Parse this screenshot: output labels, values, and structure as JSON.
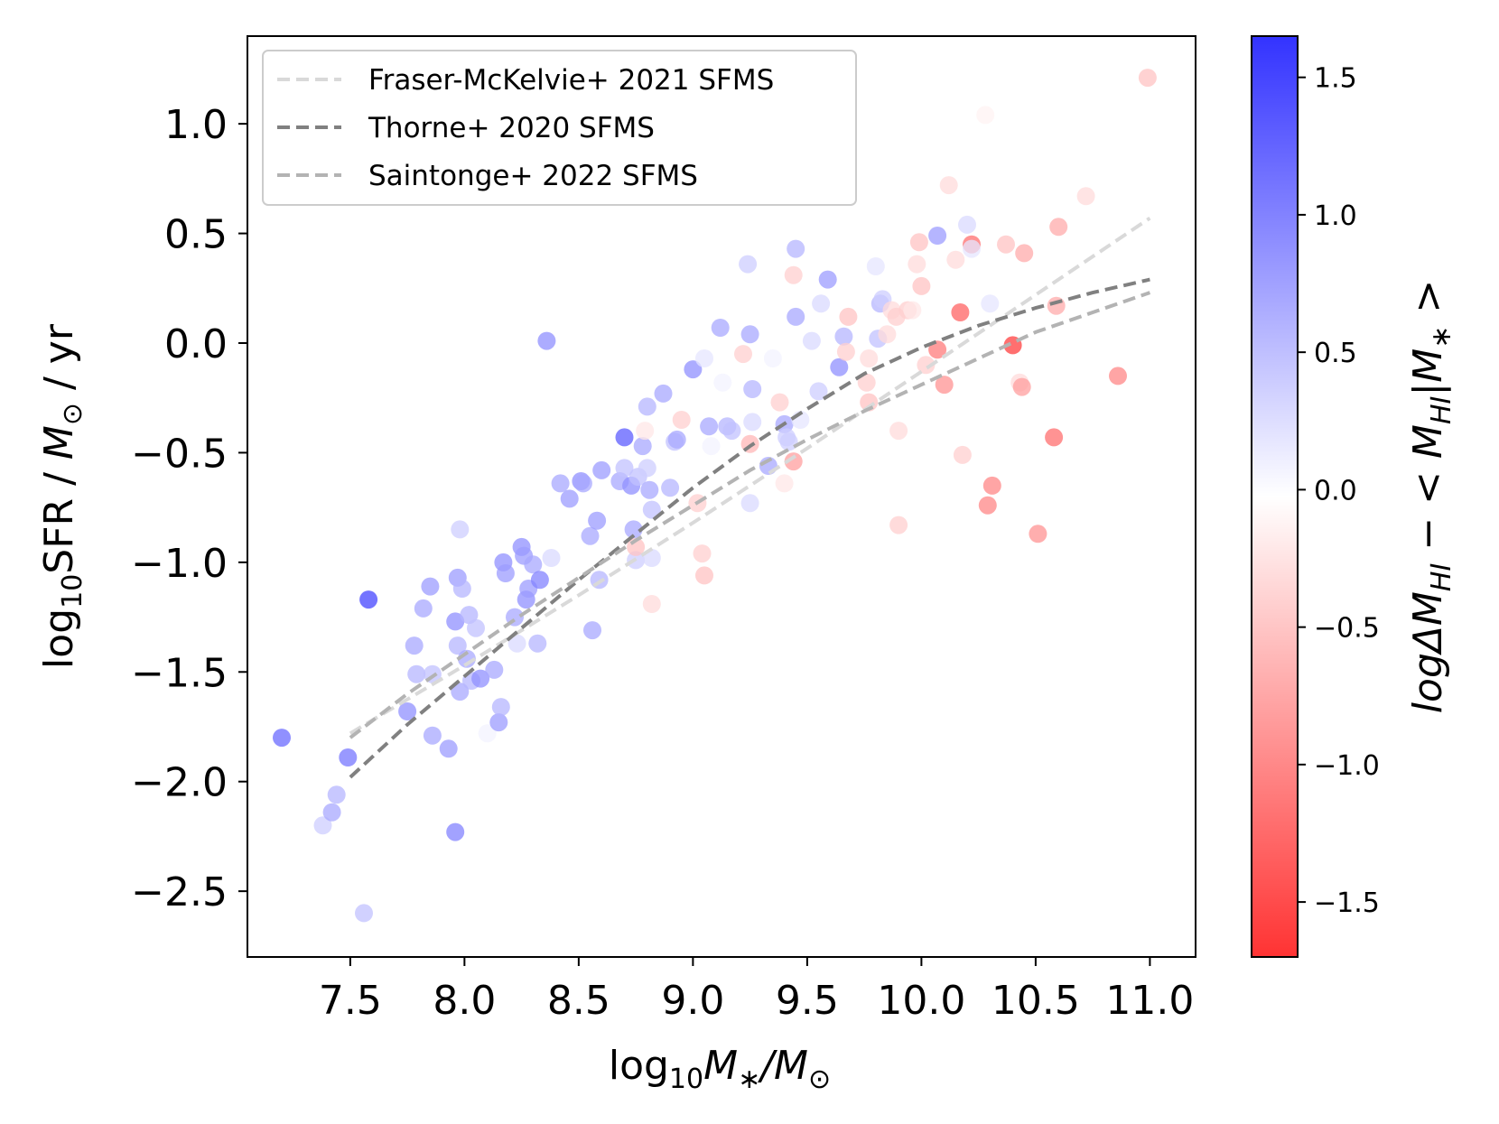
{
  "chart_data": {
    "type": "scatter",
    "xlabel": "log10M*/M⊙",
    "ylabel": "log10SFR /  M⊙ / yr",
    "colorbar_label": "logΔMHI − <MHI|M*>",
    "xlim": [
      7.05,
      11.2
    ],
    "ylim": [
      -2.8,
      1.4
    ],
    "clim": [
      -1.7,
      1.65
    ],
    "xticks": [
      7.5,
      8.0,
      8.5,
      9.0,
      9.5,
      10.0,
      10.5,
      11.0
    ],
    "xtick_labels": [
      "7.5",
      "8.0",
      "8.5",
      "9.0",
      "9.5",
      "10.0",
      "10.5",
      "11.0"
    ],
    "yticks": [
      1.0,
      0.5,
      0.0,
      -0.5,
      -1.0,
      -1.5,
      -2.0,
      -2.5
    ],
    "ytick_labels": [
      "1.0",
      "0.5",
      "0.0",
      "−0.5",
      "−1.0",
      "−1.5",
      "−2.0",
      "−2.5"
    ],
    "cticks": [
      1.5,
      1.0,
      0.5,
      0.0,
      -0.5,
      -1.0,
      -1.5
    ],
    "ctick_labels": [
      "1.5",
      "1.0",
      "0.5",
      "0.0",
      "−0.5",
      "−1.0",
      "−1.5"
    ],
    "legend": {
      "position": "upper-left",
      "entries": [
        {
          "label": "Fraser-McKelvie+ 2021 SFMS",
          "color": "#d9d9d9"
        },
        {
          "label": "Thorne+ 2020 SFMS",
          "color": "#808080"
        },
        {
          "label": "Saintonge+ 2022 SFMS",
          "color": "#b3b3b3"
        }
      ]
    },
    "lines": [
      {
        "name": "Fraser-McKelvie+ 2021 SFMS",
        "color": "#d9d9d9",
        "x": [
          7.5,
          8.0,
          8.5,
          9.0,
          9.5,
          10.0,
          10.5,
          11.0
        ],
        "y": [
          -1.78,
          -1.47,
          -1.15,
          -0.82,
          -0.48,
          -0.13,
          0.22,
          0.57
        ]
      },
      {
        "name": "Thorne+ 2020 SFMS",
        "color": "#808080",
        "x": [
          7.5,
          7.75,
          8.0,
          8.25,
          8.5,
          8.75,
          9.0,
          9.25,
          9.5,
          9.75,
          10.0,
          10.25,
          10.5,
          10.75,
          11.0
        ],
        "y": [
          -1.98,
          -1.74,
          -1.52,
          -1.3,
          -1.08,
          -0.87,
          -0.66,
          -0.47,
          -0.3,
          -0.14,
          -0.02,
          0.08,
          0.16,
          0.23,
          0.29
        ]
      },
      {
        "name": "Saintonge+ 2022 SFMS",
        "color": "#b3b3b3",
        "x": [
          7.5,
          7.75,
          8.0,
          8.25,
          8.5,
          8.75,
          9.0,
          9.25,
          9.5,
          9.75,
          10.0,
          10.25,
          10.5,
          10.75,
          11.0
        ],
        "y": [
          -1.8,
          -1.6,
          -1.42,
          -1.24,
          -1.07,
          -0.9,
          -0.74,
          -0.58,
          -0.44,
          -0.31,
          -0.19,
          -0.07,
          0.05,
          0.14,
          0.23
        ]
      }
    ],
    "points": [
      {
        "x": 7.2,
        "y": -1.8,
        "c": 1.2
      },
      {
        "x": 7.38,
        "y": -2.2,
        "c": 0.4
      },
      {
        "x": 7.42,
        "y": -2.14,
        "c": 0.7
      },
      {
        "x": 7.44,
        "y": -2.06,
        "c": 0.6
      },
      {
        "x": 7.49,
        "y": -1.89,
        "c": 1.1
      },
      {
        "x": 7.58,
        "y": -1.17,
        "c": 1.5
      },
      {
        "x": 7.56,
        "y": -2.6,
        "c": 0.5
      },
      {
        "x": 7.75,
        "y": -1.68,
        "c": 0.9
      },
      {
        "x": 7.78,
        "y": -1.38,
        "c": 0.7
      },
      {
        "x": 7.79,
        "y": -1.51,
        "c": 0.6
      },
      {
        "x": 7.82,
        "y": -1.21,
        "c": 0.7
      },
      {
        "x": 7.85,
        "y": -1.11,
        "c": 0.8
      },
      {
        "x": 7.86,
        "y": -1.51,
        "c": 0.5
      },
      {
        "x": 7.86,
        "y": -1.79,
        "c": 0.7
      },
      {
        "x": 7.93,
        "y": -1.85,
        "c": 0.8
      },
      {
        "x": 7.96,
        "y": -2.23,
        "c": 1.0
      },
      {
        "x": 7.96,
        "y": -1.27,
        "c": 0.9
      },
      {
        "x": 7.97,
        "y": -1.07,
        "c": 0.8
      },
      {
        "x": 7.97,
        "y": -1.38,
        "c": 0.6
      },
      {
        "x": 7.98,
        "y": -0.85,
        "c": 0.4
      },
      {
        "x": 7.99,
        "y": -1.12,
        "c": 0.6
      },
      {
        "x": 7.98,
        "y": -1.59,
        "c": 0.7
      },
      {
        "x": 8.01,
        "y": -1.44,
        "c": 0.7
      },
      {
        "x": 8.02,
        "y": -1.24,
        "c": 0.6
      },
      {
        "x": 8.03,
        "y": -1.54,
        "c": 0.6
      },
      {
        "x": 8.05,
        "y": -1.3,
        "c": 0.5
      },
      {
        "x": 8.07,
        "y": -1.53,
        "c": 0.9
      },
      {
        "x": 8.1,
        "y": -1.78,
        "c": 0.1
      },
      {
        "x": 8.13,
        "y": -1.49,
        "c": 0.7
      },
      {
        "x": 8.15,
        "y": -1.73,
        "c": 0.8
      },
      {
        "x": 8.16,
        "y": -1.66,
        "c": 0.6
      },
      {
        "x": 8.17,
        "y": -1.0,
        "c": 0.9
      },
      {
        "x": 8.18,
        "y": -1.05,
        "c": 0.8
      },
      {
        "x": 8.22,
        "y": -1.25,
        "c": 0.7
      },
      {
        "x": 8.23,
        "y": -1.37,
        "c": 0.3
      },
      {
        "x": 8.25,
        "y": -0.93,
        "c": 0.9
      },
      {
        "x": 8.26,
        "y": -0.97,
        "c": 0.8
      },
      {
        "x": 8.27,
        "y": -1.17,
        "c": 0.9
      },
      {
        "x": 8.28,
        "y": -1.12,
        "c": 0.8
      },
      {
        "x": 8.3,
        "y": -1.01,
        "c": 0.7
      },
      {
        "x": 8.33,
        "y": -1.08,
        "c": 1.0
      },
      {
        "x": 8.32,
        "y": -1.37,
        "c": 0.6
      },
      {
        "x": 8.36,
        "y": 0.01,
        "c": 0.9
      },
      {
        "x": 8.38,
        "y": -0.98,
        "c": 0.3
      },
      {
        "x": 8.42,
        "y": -0.64,
        "c": 0.7
      },
      {
        "x": 8.46,
        "y": -0.71,
        "c": 0.8
      },
      {
        "x": 8.51,
        "y": -0.63,
        "c": 0.9
      },
      {
        "x": 8.52,
        "y": -0.64,
        "c": 0.7
      },
      {
        "x": 8.55,
        "y": -0.88,
        "c": 0.7
      },
      {
        "x": 8.56,
        "y": -1.31,
        "c": 0.7
      },
      {
        "x": 8.58,
        "y": -0.81,
        "c": 0.8
      },
      {
        "x": 8.59,
        "y": -1.08,
        "c": 0.6
      },
      {
        "x": 8.6,
        "y": -0.58,
        "c": 0.8
      },
      {
        "x": 8.68,
        "y": -0.63,
        "c": 0.7
      },
      {
        "x": 8.7,
        "y": -0.43,
        "c": 1.3
      },
      {
        "x": 8.7,
        "y": -0.57,
        "c": 0.5
      },
      {
        "x": 8.73,
        "y": -0.65,
        "c": 0.9
      },
      {
        "x": 8.74,
        "y": -0.85,
        "c": 0.7
      },
      {
        "x": 8.75,
        "y": -0.99,
        "c": 0.4
      },
      {
        "x": 8.75,
        "y": -0.93,
        "c": -0.5
      },
      {
        "x": 8.76,
        "y": -0.61,
        "c": 0.5
      },
      {
        "x": 8.78,
        "y": -0.47,
        "c": 0.7
      },
      {
        "x": 8.79,
        "y": -0.4,
        "c": -0.2
      },
      {
        "x": 8.8,
        "y": -0.29,
        "c": 0.6
      },
      {
        "x": 8.8,
        "y": -0.57,
        "c": 0.4
      },
      {
        "x": 8.81,
        "y": -0.67,
        "c": 0.7
      },
      {
        "x": 8.82,
        "y": -0.76,
        "c": 0.5
      },
      {
        "x": 8.82,
        "y": -1.19,
        "c": -0.3
      },
      {
        "x": 8.82,
        "y": -0.98,
        "c": 0.3
      },
      {
        "x": 8.87,
        "y": -0.23,
        "c": 0.7
      },
      {
        "x": 8.9,
        "y": -0.66,
        "c": 0.6
      },
      {
        "x": 8.92,
        "y": -0.45,
        "c": 0.5
      },
      {
        "x": 8.93,
        "y": -0.44,
        "c": 0.7
      },
      {
        "x": 8.95,
        "y": -0.35,
        "c": -0.4
      },
      {
        "x": 9.0,
        "y": -0.12,
        "c": 0.9
      },
      {
        "x": 9.02,
        "y": -0.73,
        "c": -0.4
      },
      {
        "x": 9.04,
        "y": -0.96,
        "c": -0.4
      },
      {
        "x": 9.05,
        "y": -1.06,
        "c": -0.5
      },
      {
        "x": 9.05,
        "y": -0.07,
        "c": 0.2
      },
      {
        "x": 9.07,
        "y": -0.38,
        "c": 0.7
      },
      {
        "x": 9.08,
        "y": -0.47,
        "c": 0.1
      },
      {
        "x": 9.12,
        "y": 0.07,
        "c": 0.7
      },
      {
        "x": 9.13,
        "y": -0.18,
        "c": 0.1
      },
      {
        "x": 9.15,
        "y": -0.38,
        "c": 0.6
      },
      {
        "x": 9.17,
        "y": -0.4,
        "c": 0.5
      },
      {
        "x": 9.22,
        "y": -0.05,
        "c": -0.4
      },
      {
        "x": 9.24,
        "y": 0.36,
        "c": 0.4
      },
      {
        "x": 9.25,
        "y": 0.04,
        "c": 0.7
      },
      {
        "x": 9.26,
        "y": -0.21,
        "c": 0.6
      },
      {
        "x": 9.25,
        "y": -0.73,
        "c": 0.3
      },
      {
        "x": 9.26,
        "y": -0.36,
        "c": 0.3
      },
      {
        "x": 9.25,
        "y": -0.46,
        "c": -0.6
      },
      {
        "x": 9.33,
        "y": -0.56,
        "c": 0.7
      },
      {
        "x": 9.35,
        "y": -0.07,
        "c": 0.1
      },
      {
        "x": 9.38,
        "y": -0.27,
        "c": -0.4
      },
      {
        "x": 9.4,
        "y": -0.37,
        "c": 0.7
      },
      {
        "x": 9.41,
        "y": -0.43,
        "c": 0.4
      },
      {
        "x": 9.4,
        "y": -0.64,
        "c": -0.2
      },
      {
        "x": 9.42,
        "y": -0.45,
        "c": 0.4
      },
      {
        "x": 9.44,
        "y": 0.31,
        "c": -0.4
      },
      {
        "x": 9.45,
        "y": 0.43,
        "c": 0.6
      },
      {
        "x": 9.45,
        "y": 0.12,
        "c": 0.7
      },
      {
        "x": 9.44,
        "y": -0.54,
        "c": -0.8
      },
      {
        "x": 9.47,
        "y": -0.35,
        "c": 0.2
      },
      {
        "x": 9.52,
        "y": 0.01,
        "c": 0.3
      },
      {
        "x": 9.55,
        "y": -0.22,
        "c": 0.4
      },
      {
        "x": 9.56,
        "y": 0.18,
        "c": 0.3
      },
      {
        "x": 9.59,
        "y": 0.29,
        "c": 0.8
      },
      {
        "x": 9.64,
        "y": -0.11,
        "c": 0.9
      },
      {
        "x": 9.66,
        "y": 0.03,
        "c": 0.6
      },
      {
        "x": 9.67,
        "y": -0.04,
        "c": -0.4
      },
      {
        "x": 9.68,
        "y": 0.12,
        "c": -0.5
      },
      {
        "x": 9.76,
        "y": -0.18,
        "c": -0.4
      },
      {
        "x": 9.77,
        "y": -0.07,
        "c": -0.3
      },
      {
        "x": 9.77,
        "y": -0.27,
        "c": -0.5
      },
      {
        "x": 9.8,
        "y": 0.35,
        "c": 0.2
      },
      {
        "x": 9.81,
        "y": 0.02,
        "c": 0.5
      },
      {
        "x": 9.82,
        "y": 0.18,
        "c": 0.6
      },
      {
        "x": 9.83,
        "y": 0.2,
        "c": 0.4
      },
      {
        "x": 9.85,
        "y": 0.04,
        "c": -0.3
      },
      {
        "x": 9.87,
        "y": 0.15,
        "c": -0.3
      },
      {
        "x": 9.89,
        "y": 0.12,
        "c": -0.4
      },
      {
        "x": 9.9,
        "y": -0.4,
        "c": -0.3
      },
      {
        "x": 9.9,
        "y": -0.83,
        "c": -0.4
      },
      {
        "x": 9.94,
        "y": 0.15,
        "c": -0.4
      },
      {
        "x": 9.96,
        "y": 0.15,
        "c": -0.2
      },
      {
        "x": 9.98,
        "y": 0.36,
        "c": -0.3
      },
      {
        "x": 9.99,
        "y": 0.46,
        "c": -0.5
      },
      {
        "x": 10.0,
        "y": 0.26,
        "c": -0.5
      },
      {
        "x": 10.02,
        "y": -0.1,
        "c": -0.4
      },
      {
        "x": 10.07,
        "y": 0.49,
        "c": 0.8
      },
      {
        "x": 10.07,
        "y": -0.03,
        "c": -1.1
      },
      {
        "x": 10.1,
        "y": -0.19,
        "c": -0.9
      },
      {
        "x": 10.12,
        "y": 0.72,
        "c": -0.3
      },
      {
        "x": 10.15,
        "y": 0.38,
        "c": -0.3
      },
      {
        "x": 10.17,
        "y": 0.14,
        "c": -1.3
      },
      {
        "x": 10.18,
        "y": -0.51,
        "c": -0.4
      },
      {
        "x": 10.2,
        "y": 0.54,
        "c": 0.3
      },
      {
        "x": 10.22,
        "y": 0.45,
        "c": -1.2
      },
      {
        "x": 10.22,
        "y": 0.43,
        "c": 0.2
      },
      {
        "x": 10.28,
        "y": 1.04,
        "c": -0.1
      },
      {
        "x": 10.29,
        "y": -0.74,
        "c": -1.0
      },
      {
        "x": 10.3,
        "y": 0.18,
        "c": 0.2
      },
      {
        "x": 10.31,
        "y": -0.65,
        "c": -1.0
      },
      {
        "x": 10.37,
        "y": 0.45,
        "c": -0.5
      },
      {
        "x": 10.4,
        "y": -0.01,
        "c": -1.6
      },
      {
        "x": 10.43,
        "y": -0.18,
        "c": -0.3
      },
      {
        "x": 10.44,
        "y": -0.2,
        "c": -0.8
      },
      {
        "x": 10.45,
        "y": 0.41,
        "c": -0.7
      },
      {
        "x": 10.51,
        "y": -0.87,
        "c": -0.9
      },
      {
        "x": 10.58,
        "y": -0.43,
        "c": -1.2
      },
      {
        "x": 10.59,
        "y": 0.17,
        "c": -0.7
      },
      {
        "x": 10.6,
        "y": 0.53,
        "c": -0.7
      },
      {
        "x": 10.72,
        "y": 0.67,
        "c": -0.3
      },
      {
        "x": 10.86,
        "y": -0.15,
        "c": -1.0
      },
      {
        "x": 10.99,
        "y": 1.21,
        "c": -0.5
      }
    ]
  }
}
